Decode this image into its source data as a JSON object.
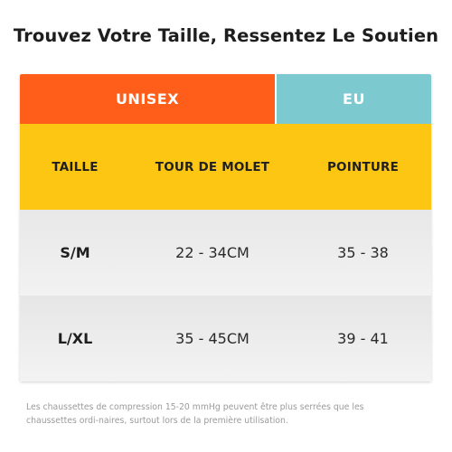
{
  "title": "Trouvez Votre Taille, Ressentez Le Soutien",
  "table": {
    "header_unisex": "UNISEX",
    "header_eu": "EU",
    "columns": [
      "TAILLE",
      "TOUR DE MOLET",
      "POINTURE"
    ],
    "rows": [
      {
        "size": "S/M",
        "calf": "22 - 34CM",
        "shoe": "35 - 38"
      },
      {
        "size": "L/XL",
        "calf": "35 - 45CM",
        "shoe": "39 - 41"
      }
    ],
    "colors": {
      "unisex_header": "#ff5d1a",
      "eu_header": "#7ccad0",
      "column_header": "#fdc613",
      "row_background": "#ececec"
    }
  },
  "footnote": "Les chaussettes de compression 15-20 mmHg peuvent être plus serrées que les chaussettes ordi-naires, surtout lors de la première utilisation."
}
